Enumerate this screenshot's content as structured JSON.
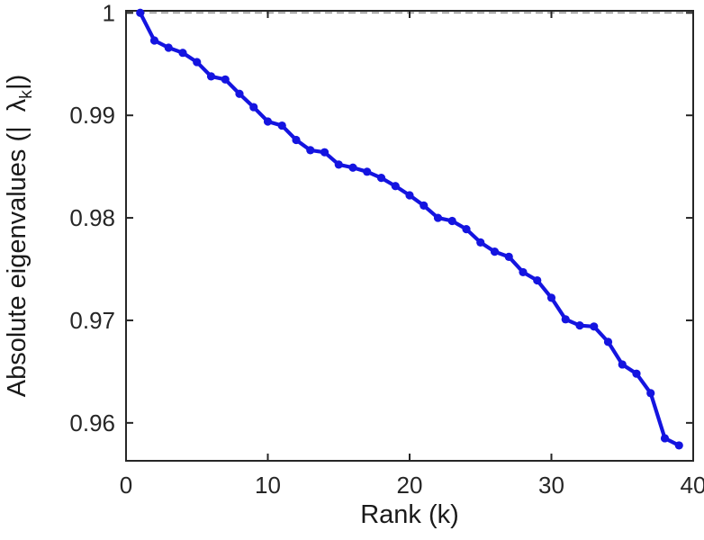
{
  "figure": {
    "xlabel": "Rank (k)",
    "ylabel_prefix": "Absolute eigenvalues (|",
    "ylabel_lambda": "λ",
    "ylabel_subscript": "k",
    "ylabel_suffix": "|)"
  },
  "chart_data": {
    "type": "line",
    "title": "",
    "xlabel": "Rank (k)",
    "ylabel": "Absolute eigenvalues (|lambda_k|)",
    "x": [
      1,
      2,
      3,
      4,
      5,
      6,
      7,
      8,
      9,
      10,
      11,
      12,
      13,
      14,
      15,
      16,
      17,
      18,
      19,
      20,
      21,
      22,
      23,
      24,
      25,
      26,
      27,
      28,
      29,
      30,
      31,
      32,
      33,
      34,
      35,
      36,
      37,
      38,
      39
    ],
    "y": [
      1.0,
      0.9973,
      0.9966,
      0.9961,
      0.9952,
      0.9938,
      0.9935,
      0.9921,
      0.9908,
      0.9894,
      0.989,
      0.9876,
      0.9866,
      0.9864,
      0.9852,
      0.9849,
      0.9845,
      0.9839,
      0.9831,
      0.9822,
      0.9812,
      0.98,
      0.9797,
      0.9789,
      0.9776,
      0.9767,
      0.9762,
      0.9747,
      0.9739,
      0.9722,
      0.9701,
      0.9695,
      0.9694,
      0.9679,
      0.9657,
      0.9648,
      0.9629,
      0.9585,
      0.9578
    ],
    "xlim": [
      0,
      40
    ],
    "ylim": [
      0.9563,
      1.0002
    ],
    "x_ticks": [
      0,
      10,
      20,
      30,
      40
    ],
    "x_tick_labels": [
      "0",
      "10",
      "20",
      "30",
      "40"
    ],
    "y_ticks": [
      0.96,
      0.97,
      0.98,
      0.99,
      1
    ],
    "y_tick_labels": [
      "0.96",
      "0.97",
      "0.98",
      "0.99",
      "1"
    ],
    "line_color": "#1414e0",
    "line_width": 4.2,
    "marker": "circle",
    "marker_size": 4.6,
    "reference_line": {
      "y": 1,
      "style": "dashed",
      "color": "#9a9a9a"
    },
    "grid": false,
    "legend": null,
    "axis_color": "#262626"
  }
}
